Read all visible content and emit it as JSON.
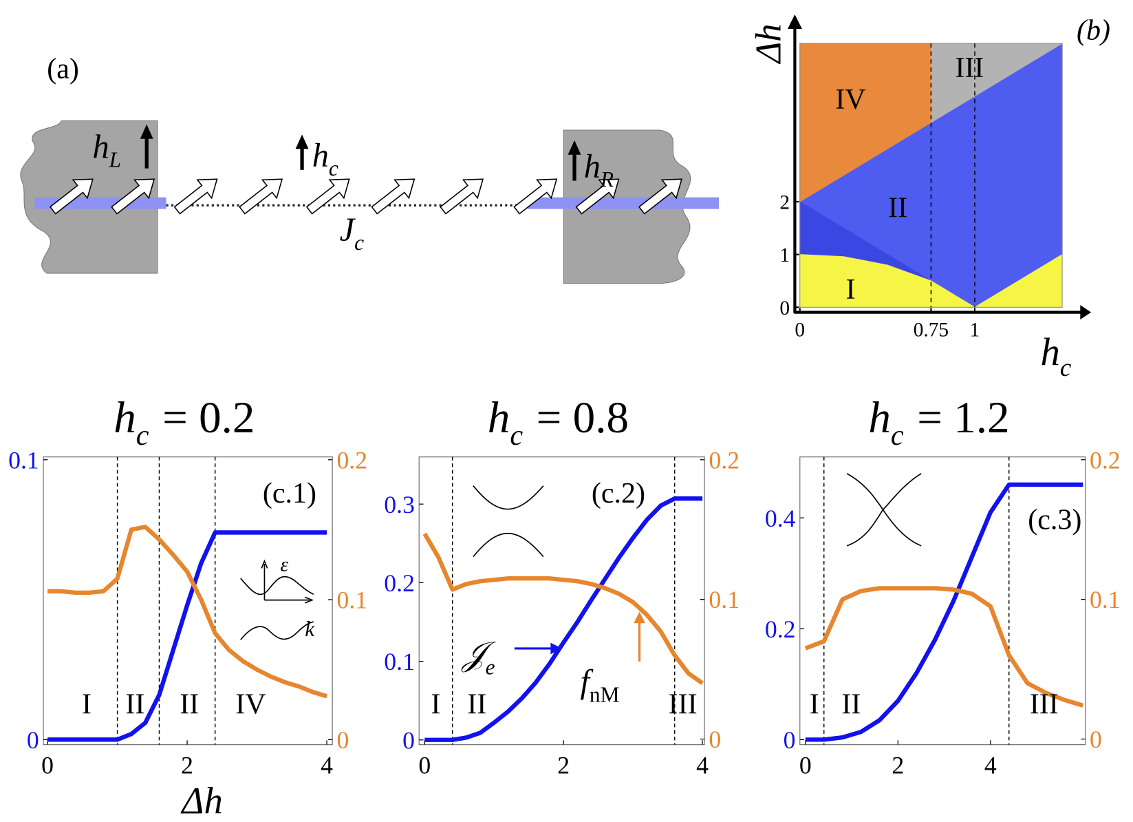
{
  "diagram": {
    "panel": "(a)",
    "labels": [
      {
        "base": "h",
        "sub": "L"
      },
      {
        "base": "h",
        "sub": "c"
      },
      {
        "base": "h",
        "sub": "R"
      },
      {
        "base": "J",
        "sub": "c"
      }
    ]
  },
  "chart_data": [
    {
      "type": "phase",
      "panel": "(b)",
      "xlabel": {
        "base": "h",
        "sub": "c"
      },
      "ylabel": "Δh",
      "xlim": [
        0,
        1.5
      ],
      "ylim": [
        0,
        5
      ],
      "xticks": [
        0,
        0.75,
        1
      ],
      "yticks": [
        0,
        1,
        2
      ],
      "vlines": [
        0.75,
        1
      ],
      "regions": [
        {
          "name": "II",
          "color": "#4f5cf0",
          "x": [
            0,
            1.5,
            1.5,
            1,
            0.75
          ],
          "y": [
            2,
            5,
            1,
            0,
            0.5
          ]
        },
        {
          "color": "#3b47e2",
          "x": [
            0,
            0.75,
            0.5,
            0.25,
            0
          ],
          "y": [
            2,
            0.5,
            0.8,
            0.96,
            1
          ]
        },
        {
          "name": "IV",
          "color": "#e8893c",
          "x": [
            0,
            0,
            0.75,
            0.75
          ],
          "y": [
            2,
            5,
            5,
            3.5
          ]
        },
        {
          "name": "III",
          "color": "#b3b3b3",
          "x": [
            0.75,
            0.75,
            1.5
          ],
          "y": [
            3.5,
            5,
            5
          ]
        },
        {
          "name": "I",
          "color": "#f6f445",
          "x": [
            0,
            0,
            0.25,
            0.5,
            0.75,
            1,
            1.5,
            1.5
          ],
          "y": [
            0,
            1,
            0.96,
            0.8,
            0.5,
            0,
            1,
            0
          ]
        }
      ]
    },
    {
      "type": "line",
      "panel": "(c.1)",
      "title": {
        "base": "h",
        "sub": "c",
        "rest": "= 0.2"
      },
      "xlabel": "Δh",
      "xlim": [
        -0.06,
        4.08
      ],
      "ylim": [
        -0.0018,
        0.101
      ],
      "y2lim": [
        -0.0036,
        0.202
      ],
      "xticks": [
        0,
        2,
        4
      ],
      "yticks": [
        0,
        0.1
      ],
      "y2ticks": [
        0,
        0.1,
        0.2
      ],
      "vlines": [
        1.0,
        1.6,
        2.4
      ],
      "regions": [
        "I",
        "II",
        "II",
        "IV"
      ],
      "inset_labels": [
        "ε",
        "k"
      ],
      "x": [
        0,
        0.2,
        0.4,
        0.6,
        0.8,
        1.0,
        1.2,
        1.4,
        1.6,
        1.8,
        2.0,
        2.2,
        2.4,
        2.6,
        2.8,
        3.0,
        3.2,
        3.4,
        3.6,
        3.8,
        4.0
      ],
      "series": [
        {
          "color": "#1212ee",
          "values": [
            0,
            0,
            0,
            0,
            0,
            0,
            0.002,
            0.006,
            0.016,
            0.032,
            0.048,
            0.063,
            0.074,
            0.074,
            0.074,
            0.074,
            0.074,
            0.074,
            0.074,
            0.074,
            0.074
          ]
        },
        {
          "color": "#e6862e",
          "axis": "y2",
          "values": [
            0.106,
            0.106,
            0.105,
            0.105,
            0.106,
            0.115,
            0.15,
            0.152,
            0.143,
            0.132,
            0.12,
            0.1,
            0.076,
            0.064,
            0.056,
            0.05,
            0.045,
            0.041,
            0.038,
            0.034,
            0.031
          ]
        }
      ]
    },
    {
      "type": "line",
      "panel": "(c.2)",
      "title": {
        "base": "h",
        "sub": "c",
        "rest": "= 0.8"
      },
      "xlim": [
        -0.08,
        4.03
      ],
      "ylim": [
        -0.006,
        0.36
      ],
      "y2lim": [
        -0.004,
        0.202
      ],
      "xticks": [
        0,
        2,
        4
      ],
      "yticks": [
        0,
        0.1,
        0.2,
        0.3
      ],
      "y2ticks": [
        0,
        0.1,
        0.2
      ],
      "vlines": [
        0.4,
        3.6
      ],
      "regions": [
        "I",
        "II",
        "III"
      ],
      "annotations": [
        {
          "base": "𝒥",
          "sub": "e"
        },
        {
          "base": "f",
          "sub": "nM"
        }
      ],
      "x": [
        0,
        0.2,
        0.4,
        0.6,
        0.8,
        1.0,
        1.2,
        1.4,
        1.6,
        1.8,
        2.0,
        2.2,
        2.4,
        2.6,
        2.8,
        3.0,
        3.2,
        3.4,
        3.6,
        3.8,
        4.0
      ],
      "series": [
        {
          "color": "#1212ee",
          "values": [
            0,
            0,
            0,
            0.003,
            0.009,
            0.022,
            0.036,
            0.053,
            0.073,
            0.097,
            0.124,
            0.15,
            0.178,
            0.205,
            0.232,
            0.257,
            0.28,
            0.298,
            0.307,
            0.307,
            0.307
          ]
        },
        {
          "color": "#e6862e",
          "axis": "y2",
          "values": [
            0.147,
            0.13,
            0.107,
            0.111,
            0.113,
            0.114,
            0.115,
            0.115,
            0.115,
            0.115,
            0.114,
            0.113,
            0.111,
            0.108,
            0.104,
            0.098,
            0.089,
            0.077,
            0.06,
            0.047,
            0.04
          ]
        }
      ]
    },
    {
      "type": "line",
      "panel": "(c.3)",
      "title": {
        "base": "h",
        "sub": "c",
        "rest": "= 1.2"
      },
      "xlim": [
        -0.12,
        6.05
      ],
      "ylim": [
        -0.009,
        0.51
      ],
      "y2lim": [
        -0.004,
        0.202
      ],
      "xticks": [
        0,
        2,
        4
      ],
      "yticks": [
        0,
        0.2,
        0.4
      ],
      "y2ticks": [
        0,
        0.1,
        0.2
      ],
      "vlines": [
        0.4,
        4.4
      ],
      "regions": [
        "I",
        "II",
        "III"
      ],
      "x": [
        0,
        0.4,
        0.8,
        1.2,
        1.6,
        2.0,
        2.4,
        2.8,
        3.2,
        3.6,
        4.0,
        4.4,
        4.8,
        5.2,
        5.6,
        6.0
      ],
      "series": [
        {
          "color": "#1212ee",
          "values": [
            0,
            0,
            0.004,
            0.014,
            0.035,
            0.07,
            0.12,
            0.18,
            0.25,
            0.33,
            0.41,
            0.46,
            0.46,
            0.46,
            0.46,
            0.46
          ]
        },
        {
          "color": "#e6862e",
          "axis": "y2",
          "values": [
            0.065,
            0.07,
            0.1,
            0.106,
            0.108,
            0.108,
            0.108,
            0.108,
            0.107,
            0.104,
            0.095,
            0.06,
            0.04,
            0.033,
            0.028,
            0.024
          ]
        }
      ]
    }
  ]
}
